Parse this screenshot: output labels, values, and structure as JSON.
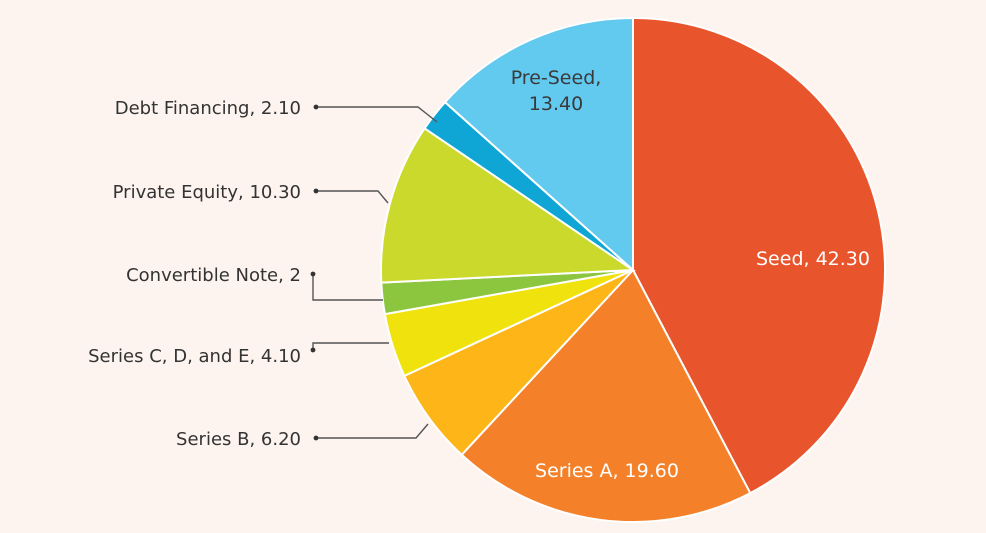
{
  "chart_data": {
    "type": "pie",
    "slices": [
      {
        "label": "Seed, 42.30",
        "value": 42.3,
        "color": "#e8542c",
        "label_pos": "inside"
      },
      {
        "label": "Series A, 19.60",
        "value": 19.6,
        "color": "#f4812a",
        "label_pos": "inside"
      },
      {
        "label": "Series B, 6.20",
        "value": 6.2,
        "color": "#fdb517",
        "label_pos": "outside"
      },
      {
        "label": "Series C, D, and E, 4.10",
        "value": 4.1,
        "color": "#f0e30d",
        "label_pos": "outside"
      },
      {
        "label": "Convertible Note, 2",
        "value": 2.0,
        "color": "#8cc63e",
        "label_pos": "outside"
      },
      {
        "label": "Private Equity, 10.30",
        "value": 10.3,
        "color": "#cbd92d",
        "label_pos": "outside"
      },
      {
        "label": "Debt Financing, 2.10",
        "value": 2.1,
        "color": "#0fa6d6",
        "label_pos": "outside"
      },
      {
        "label": "Pre-Seed, 13.40",
        "label_lines": [
          "Pre-Seed,",
          "13.40"
        ],
        "value": 13.4,
        "color": "#62c9ef",
        "label_pos": "inside"
      }
    ],
    "start": "12 o'clock",
    "direction": "clockwise",
    "legend": "none"
  }
}
